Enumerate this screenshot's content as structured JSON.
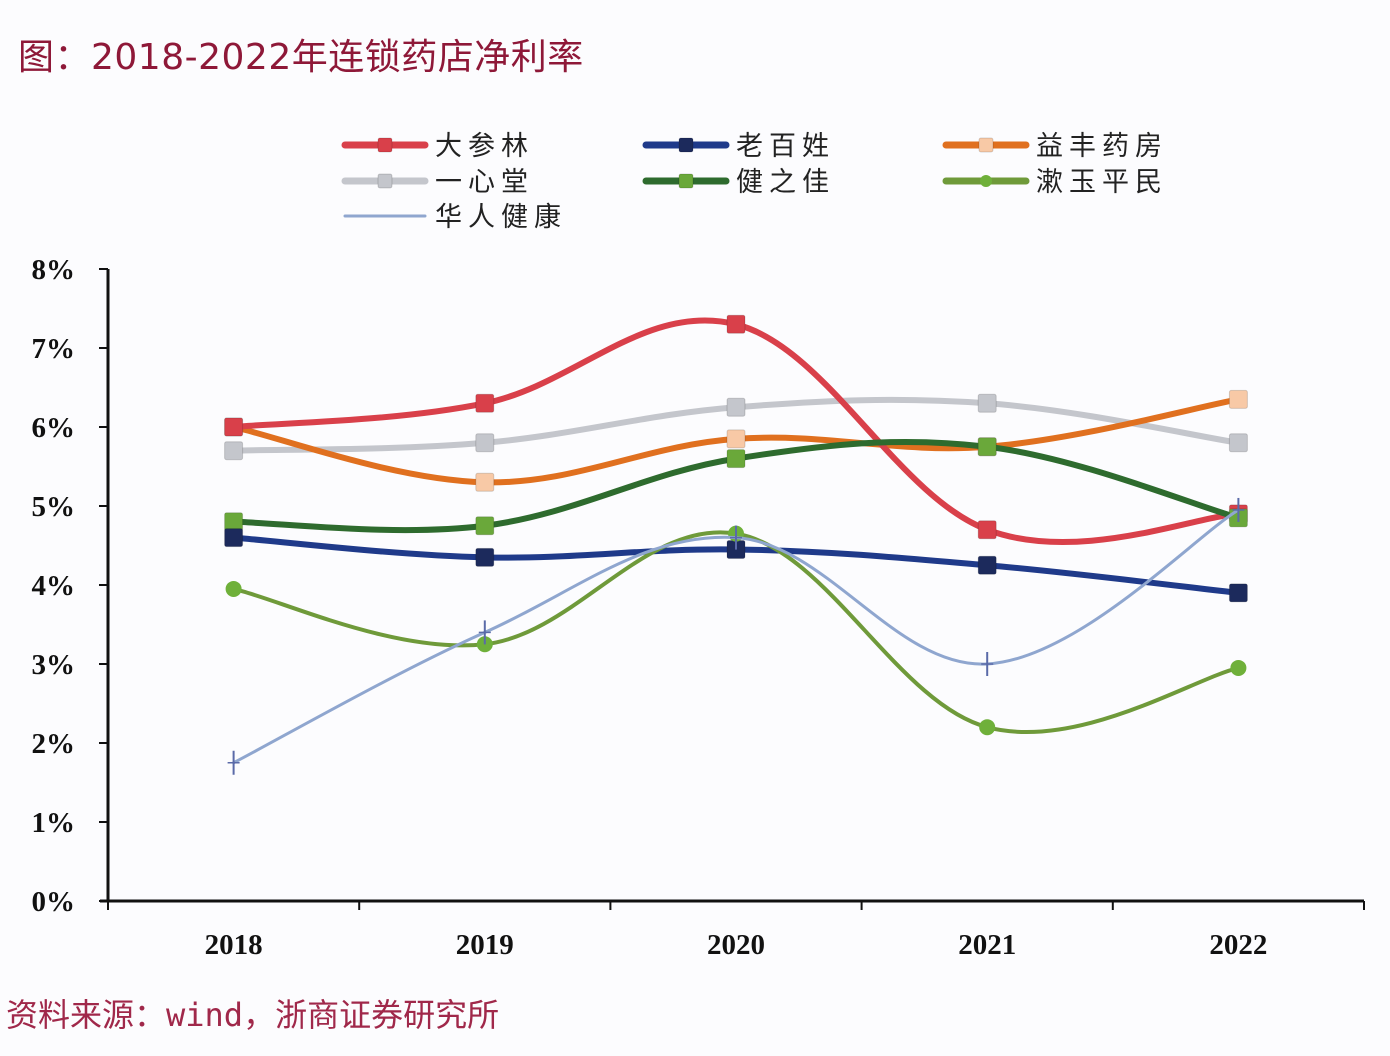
{
  "title": "图：2018-2022年连锁药店净利率",
  "source": "资料来源：wind，浙商证券研究所",
  "chart_data": {
    "type": "line",
    "title": "图：2018-2022年连锁药店净利率",
    "xlabel": "",
    "ylabel": "",
    "categories": [
      "2018",
      "2019",
      "2020",
      "2021",
      "2022"
    ],
    "ylim": [
      0,
      8
    ],
    "yticks": [
      "0%",
      "1%",
      "2%",
      "3%",
      "4%",
      "5%",
      "6%",
      "7%",
      "8%"
    ],
    "ytick_values": [
      0,
      1,
      2,
      3,
      4,
      5,
      6,
      7,
      8
    ],
    "grid": false,
    "smooth": true,
    "legend_position": "top",
    "series": [
      {
        "name": "大参林",
        "color": "#d9404a",
        "marker": "square",
        "marker_color": "#d9404a",
        "values": [
          6.0,
          6.3,
          7.3,
          4.7,
          4.9
        ]
      },
      {
        "name": "老百姓",
        "color": "#1f3a8a",
        "marker": "square",
        "marker_color": "#1c2a5c",
        "values": [
          4.6,
          4.35,
          4.45,
          4.25,
          3.9
        ]
      },
      {
        "name": "益丰药房",
        "color": "#e0701f",
        "marker": "square",
        "marker_color": "#f8c9a6",
        "values": [
          6.0,
          5.3,
          5.85,
          5.75,
          6.35
        ]
      },
      {
        "name": "一心堂",
        "color": "#c4c6cc",
        "marker": "square",
        "marker_color": "#c4c6cc",
        "values": [
          5.7,
          5.8,
          6.25,
          6.3,
          5.8
        ]
      },
      {
        "name": "健之佳",
        "color": "#2e6b2e",
        "marker": "square",
        "marker_color": "#6aa83a",
        "values": [
          4.8,
          4.75,
          5.6,
          5.75,
          4.85
        ]
      },
      {
        "name": "漱玉平民",
        "color": "#6f9a3a",
        "marker": "circle",
        "marker_color": "#6fb03a",
        "values": [
          3.95,
          3.25,
          4.65,
          2.2,
          2.95
        ]
      },
      {
        "name": "华人健康",
        "color": "#8fa6cf",
        "marker": "plus",
        "marker_color": "#5a6aa8",
        "values": [
          1.75,
          3.4,
          4.6,
          3.0,
          4.95
        ]
      }
    ]
  }
}
